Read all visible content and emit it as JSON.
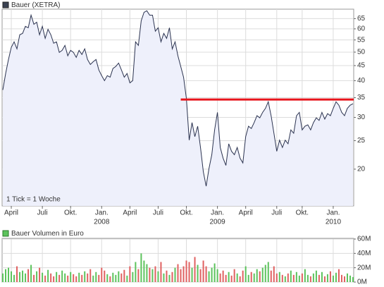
{
  "chart_data": [
    {
      "type": "line",
      "series": [
        {
          "name": "Bauer (XETRA)",
          "color": "#2b3350",
          "values": [
            37.2,
            42.3,
            47.2,
            51.9,
            54.2,
            51.3,
            57.3,
            57.9,
            61.2,
            60.5,
            66.8,
            62.2,
            63.2,
            57.3,
            61.2,
            55.7,
            59.8,
            57.3,
            53.6,
            54.2,
            49.9,
            50.7,
            52.7,
            48.6,
            50.7,
            49.9,
            48.0,
            50.7,
            49.1,
            51.3,
            47.2,
            45.4,
            46.4,
            47.2,
            43.5,
            41.6,
            40.0,
            41.6,
            41.1,
            44.0,
            44.7,
            45.9,
            43.5,
            41.1,
            42.3,
            39.3,
            40.0,
            54.2,
            52.7,
            63.9,
            68.3,
            69.1,
            66.8,
            66.8,
            58.9,
            60.5,
            54.2,
            57.9,
            55.7,
            60.5,
            51.3,
            54.2,
            48.6,
            44.7,
            41.1,
            34.8,
            25.1,
            28.8,
            25.8,
            28.0,
            23.7,
            19.6,
            17.5,
            20.1,
            22.4,
            27.2,
            31.2,
            23.7,
            21.8,
            20.6,
            24.4,
            23.0,
            22.4,
            23.7,
            21.8,
            21.0,
            25.8,
            28.0,
            27.5,
            28.8,
            30.4,
            29.9,
            31.2,
            32.2,
            33.9,
            30.4,
            26.5,
            23.0,
            25.1,
            23.7,
            25.1,
            24.4,
            27.2,
            26.5,
            30.4,
            31.2,
            27.2,
            28.0,
            28.3,
            27.2,
            28.8,
            29.9,
            29.3,
            31.2,
            29.6,
            30.9,
            30.4,
            32.2,
            33.9,
            33.0,
            31.2,
            30.4,
            32.2,
            33.0,
            33.4
          ]
        }
      ],
      "categories": [
        null,
        null,
        null,
        "April",
        null,
        null,
        null,
        null,
        null,
        null,
        null,
        null,
        null,
        null,
        "Juli",
        null,
        null,
        null,
        null,
        null,
        null,
        null,
        null,
        null,
        "Okt.",
        null,
        null,
        null,
        null,
        null,
        null,
        null,
        null,
        null,
        null,
        "Jan.",
        null,
        null,
        null,
        null,
        null,
        null,
        null,
        null,
        null,
        "April",
        null,
        null,
        null,
        null,
        null,
        null,
        null,
        null,
        null,
        "Juli",
        null,
        null,
        null,
        null,
        null,
        null,
        null,
        null,
        null,
        "Okt.",
        null,
        null,
        null,
        null,
        null,
        null,
        null,
        null,
        null,
        null,
        "Jan.",
        null,
        null,
        null,
        null,
        null,
        null,
        null,
        null,
        null,
        "April",
        null,
        null,
        null,
        null,
        null,
        null,
        null,
        null,
        null,
        null,
        "Juli",
        null,
        null,
        null,
        null,
        null,
        null,
        null,
        null,
        "Okt.",
        null,
        null,
        null,
        null,
        null,
        null,
        null,
        null,
        null,
        null,
        "Jan.",
        null,
        null,
        null,
        null,
        null,
        null,
        null
      ],
      "category_years": [
        null,
        null,
        null,
        null,
        null,
        null,
        null,
        null,
        null,
        null,
        null,
        null,
        null,
        null,
        null,
        null,
        null,
        null,
        null,
        null,
        null,
        null,
        null,
        null,
        null,
        null,
        null,
        null,
        null,
        null,
        null,
        null,
        null,
        null,
        null,
        "2008",
        null,
        null,
        null,
        null,
        null,
        null,
        null,
        null,
        null,
        null,
        null,
        null,
        null,
        null,
        null,
        null,
        null,
        null,
        null,
        null,
        null,
        null,
        null,
        null,
        null,
        null,
        null,
        null,
        null,
        null,
        null,
        null,
        null,
        null,
        null,
        null,
        null,
        null,
        null,
        null,
        "2009",
        null,
        null,
        null,
        null,
        null,
        null,
        null,
        null,
        null,
        null,
        null,
        null,
        null,
        null,
        null,
        null,
        null,
        null,
        null,
        null,
        null,
        null,
        null,
        null,
        null,
        null,
        null,
        null,
        null,
        null,
        null,
        null,
        null,
        null,
        null,
        null,
        null,
        null,
        null,
        null,
        "2010",
        null,
        null,
        null,
        null,
        null,
        null,
        null
      ],
      "ylim": [
        15,
        70
      ],
      "yticks": [
        20,
        25,
        30,
        35,
        40,
        45,
        50,
        55,
        60,
        65
      ],
      "log_scale": true,
      "grid": true,
      "fill_color": "#eef0fb",
      "annotation": "1 Tick = 1 Woche",
      "resistance_line": {
        "value": 34.5,
        "from_index": 63,
        "color": "#e8141b"
      }
    },
    {
      "type": "bar",
      "name": "Bauer Volumen in Euro",
      "up_color": "#5cc35c",
      "down_color": "#e06060",
      "values": [
        12000000,
        18000000,
        20000000,
        15000000,
        10000000,
        22000000,
        14000000,
        16000000,
        12000000,
        18000000,
        24000000,
        10000000,
        15000000,
        20000000,
        13000000,
        9000000,
        17000000,
        12000000,
        8000000,
        14000000,
        10000000,
        16000000,
        12000000,
        9000000,
        14000000,
        11000000,
        8000000,
        13000000,
        10000000,
        15000000,
        12000000,
        18000000,
        9000000,
        14000000,
        10000000,
        20000000,
        16000000,
        11000000,
        8000000,
        13000000,
        10000000,
        15000000,
        12000000,
        17000000,
        9000000,
        22000000,
        14000000,
        28000000,
        18000000,
        40000000,
        30000000,
        25000000,
        20000000,
        18000000,
        22000000,
        15000000,
        28000000,
        12000000,
        16000000,
        10000000,
        14000000,
        20000000,
        25000000,
        18000000,
        22000000,
        30000000,
        28000000,
        20000000,
        35000000,
        24000000,
        18000000,
        30000000,
        22000000,
        15000000,
        20000000,
        26000000,
        18000000,
        12000000,
        16000000,
        10000000,
        14000000,
        9000000,
        18000000,
        12000000,
        8000000,
        16000000,
        22000000,
        10000000,
        14000000,
        12000000,
        18000000,
        15000000,
        20000000,
        24000000,
        28000000,
        16000000,
        22000000,
        12000000,
        14000000,
        10000000,
        8000000,
        12000000,
        16000000,
        10000000,
        14000000,
        9000000,
        12000000,
        18000000,
        10000000,
        8000000,
        12000000,
        16000000,
        10000000,
        14000000,
        8000000,
        11000000,
        15000000,
        9000000,
        13000000,
        18000000,
        10000000,
        8000000,
        12000000,
        9000000,
        7000000
      ],
      "ylim": [
        0,
        60000000
      ],
      "yticks": [
        {
          "value": 0,
          "label": "0M"
        },
        {
          "value": 20000000,
          "label": "20M"
        },
        {
          "value": 40000000,
          "label": "40M"
        },
        {
          "value": 60000000,
          "label": "60M"
        }
      ],
      "grid": true
    }
  ]
}
